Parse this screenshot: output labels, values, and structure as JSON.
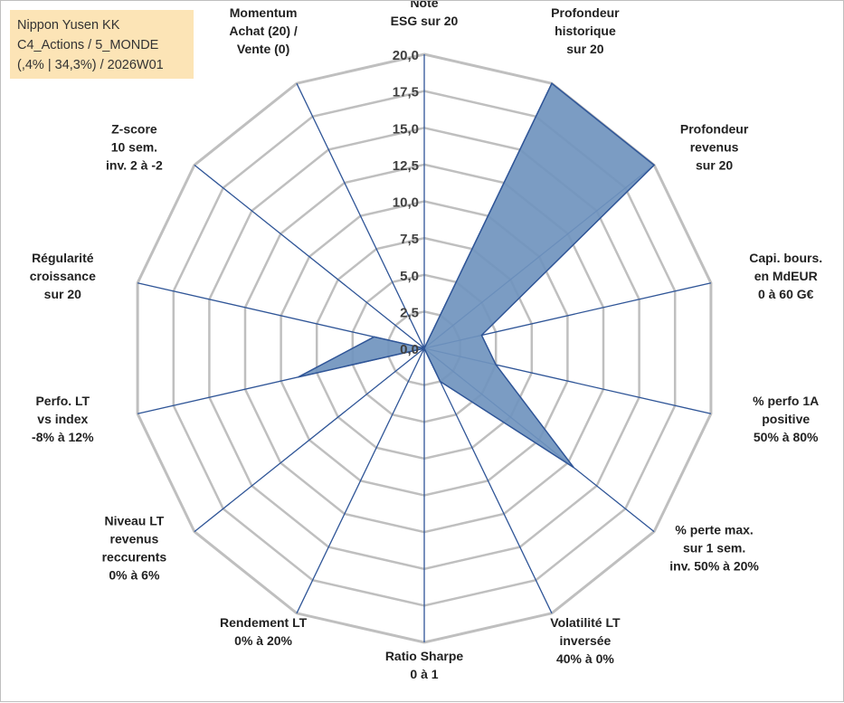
{
  "title_box": {
    "line1": "Nippon Yusen KK",
    "line2": "C4_Actions / 5_MONDE",
    "line3": "(,4% | 34,3%) / 2026W01"
  },
  "chart_data": {
    "type": "radar",
    "rmin": 0,
    "rmax": 20,
    "ticks": [
      "0,0",
      "2,5",
      "5,0",
      "7,5",
      "10,0",
      "12,5",
      "15,0",
      "17,5",
      "20,0"
    ],
    "grid": true,
    "colors": {
      "fill": "#7094be",
      "stroke": "#2f5597",
      "grid": "#bfbfbf",
      "spoke": "#2f5597"
    },
    "axes": [
      {
        "label": [
          "Note",
          "ESG sur 20"
        ],
        "value": 0
      },
      {
        "label": [
          "Profondeur",
          "historique",
          "sur 20"
        ],
        "value": 20
      },
      {
        "label": [
          "Profondeur",
          "revenus",
          "sur 20"
        ],
        "value": 20
      },
      {
        "label": [
          "Capi. bours.",
          "en MdEUR",
          "0 à 60 G€"
        ],
        "value": 4
      },
      {
        "label": [
          "% perfo 1A",
          "positive",
          "50% à 80%"
        ],
        "value": 5
      },
      {
        "label": [
          "% perte max.",
          "sur 1 sem.",
          "inv. 50% à 20%"
        ],
        "value": 13
      },
      {
        "label": [
          "Volatilité LT",
          "inversée",
          "40% à 0%"
        ],
        "value": 2.5
      },
      {
        "label": [
          "Ratio Sharpe",
          "0 à 1"
        ],
        "value": 0
      },
      {
        "label": [
          "Rendement LT",
          "0% à 20%"
        ],
        "value": 0
      },
      {
        "label": [
          "Niveau LT",
          "revenus",
          "reccurents",
          "0% à 6%"
        ],
        "value": 0
      },
      {
        "label": [
          "Perfo. LT",
          "vs index",
          "-8% à 12%"
        ],
        "value": 8.8
      },
      {
        "label": [
          "Régularité",
          "croissance",
          "sur 20"
        ],
        "value": 3.5
      },
      {
        "label": [
          "Z-score",
          "10 sem.",
          "inv. 2 à -2"
        ],
        "value": 0
      },
      {
        "label": [
          "Momentum",
          "Achat (20) /",
          "Vente (0)"
        ],
        "value": 0
      }
    ]
  }
}
